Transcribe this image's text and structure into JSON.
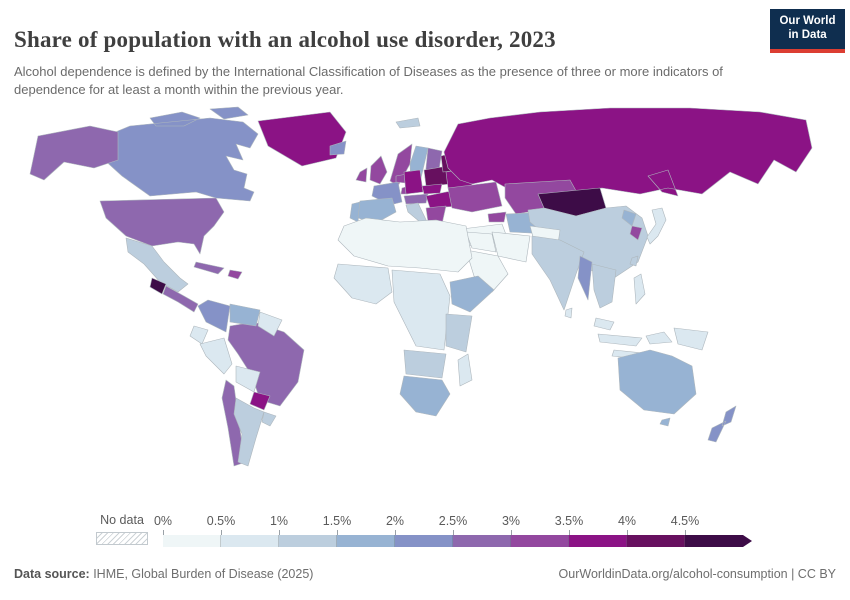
{
  "header": {
    "title": "Share of population with an alcohol use disorder, 2023",
    "subtitle": "Alcohol dependence is defined by the International Classification of Diseases as the presence of three or more indicators of dependence for at least a month within the previous year.",
    "logo": {
      "line1": "Our World",
      "line2": "in Data",
      "bg": "#0f2e4f",
      "accent": "#dc3e32"
    }
  },
  "footer": {
    "source_label": "Data source:",
    "source_text": " IHME, Global Burden of Disease (2025)",
    "link_text": "OurWorldinData.org/alcohol-consumption | CC BY"
  },
  "chart_data": {
    "type": "choropleth_map",
    "title": "Share of population with an alcohol use disorder, 2023",
    "year": 2023,
    "unit": "% of population",
    "legend_position": "bottom",
    "no_data": {
      "label": "No data"
    },
    "legend_bins": [
      {
        "tick": "0%",
        "range": "0-0.5%",
        "color": "#eff6f7"
      },
      {
        "tick": "0.5%",
        "range": "0.5-1%",
        "color": "#dbe8f0"
      },
      {
        "tick": "1%",
        "range": "1-1.5%",
        "color": "#bccede"
      },
      {
        "tick": "1.5%",
        "range": "1.5-2%",
        "color": "#97b3d3"
      },
      {
        "tick": "2%",
        "range": "2-2.5%",
        "color": "#8592c7"
      },
      {
        "tick": "2.5%",
        "range": "2.5-3%",
        "color": "#8e68ae"
      },
      {
        "tick": "3%",
        "range": "3-3.5%",
        "color": "#93489f"
      },
      {
        "tick": "3.5%",
        "range": "3.5-4%",
        "color": "#8b1385"
      },
      {
        "tick": "4%",
        "range": "4-4.5%",
        "color": "#67105f"
      },
      {
        "tick": "4.5%",
        "range": "4.5%+",
        "color": "#3d0c47"
      }
    ],
    "regions": [
      {
        "id": "canada",
        "bin": 4
      },
      {
        "id": "alaska",
        "bin": 5
      },
      {
        "id": "united-states",
        "bin": 5
      },
      {
        "id": "greenland",
        "bin": 7
      },
      {
        "id": "mexico",
        "bin": 2
      },
      {
        "id": "guatemala",
        "bin": 9
      },
      {
        "id": "central-america",
        "bin": 5
      },
      {
        "id": "cuba",
        "bin": 5
      },
      {
        "id": "hispaniola",
        "bin": 6
      },
      {
        "id": "colombia",
        "bin": 4
      },
      {
        "id": "venezuela",
        "bin": 3
      },
      {
        "id": "guianas",
        "bin": 1
      },
      {
        "id": "ecuador",
        "bin": 1
      },
      {
        "id": "peru",
        "bin": 1
      },
      {
        "id": "brazil",
        "bin": 5
      },
      {
        "id": "bolivia",
        "bin": 1
      },
      {
        "id": "paraguay",
        "bin": 7
      },
      {
        "id": "chile",
        "bin": 5
      },
      {
        "id": "argentina",
        "bin": 2
      },
      {
        "id": "uruguay",
        "bin": 2
      },
      {
        "id": "iceland",
        "bin": 4
      },
      {
        "id": "svalbard",
        "bin": 2
      },
      {
        "id": "norway",
        "bin": 6
      },
      {
        "id": "sweden",
        "bin": 3
      },
      {
        "id": "finland",
        "bin": 5
      },
      {
        "id": "denmark",
        "bin": 6
      },
      {
        "id": "united-kingdom",
        "bin": 6
      },
      {
        "id": "ireland",
        "bin": 6
      },
      {
        "id": "portugal",
        "bin": 3
      },
      {
        "id": "spain",
        "bin": 3
      },
      {
        "id": "france",
        "bin": 4
      },
      {
        "id": "benelux",
        "bin": 6
      },
      {
        "id": "germany",
        "bin": 7
      },
      {
        "id": "alpine-states",
        "bin": 5
      },
      {
        "id": "italy",
        "bin": 2
      },
      {
        "id": "czech-slovakia",
        "bin": 7
      },
      {
        "id": "poland",
        "bin": 8
      },
      {
        "id": "hungary-romania",
        "bin": 7
      },
      {
        "id": "balkans",
        "bin": 6
      },
      {
        "id": "greece",
        "bin": 2
      },
      {
        "id": "baltic-states",
        "bin": 8
      },
      {
        "id": "belarus",
        "bin": 7
      },
      {
        "id": "ukraine",
        "bin": 6
      },
      {
        "id": "turkey",
        "bin": 0
      },
      {
        "id": "caucasus",
        "bin": 6
      },
      {
        "id": "russia",
        "bin": 7
      },
      {
        "id": "kazakhstan",
        "bin": 6
      },
      {
        "id": "central-asia",
        "bin": 3
      },
      {
        "id": "kyrgyzstan-tajikistan",
        "bin": 5
      },
      {
        "id": "mongolia",
        "bin": 9
      },
      {
        "id": "china",
        "bin": 2
      },
      {
        "id": "north-korea",
        "bin": 3
      },
      {
        "id": "south-korea",
        "bin": 6
      },
      {
        "id": "japan",
        "bin": 1
      },
      {
        "id": "taiwan",
        "bin": 2
      },
      {
        "id": "afghanistan-pakistan",
        "bin": 0
      },
      {
        "id": "iran",
        "bin": 0
      },
      {
        "id": "iraq-syria",
        "bin": 0
      },
      {
        "id": "arabian-peninsula",
        "bin": 0
      },
      {
        "id": "india",
        "bin": 2
      },
      {
        "id": "sri-lanka",
        "bin": 1
      },
      {
        "id": "myanmar",
        "bin": 4
      },
      {
        "id": "indochina",
        "bin": 2
      },
      {
        "id": "malaysia",
        "bin": 1
      },
      {
        "id": "philippines",
        "bin": 1
      },
      {
        "id": "indonesia",
        "bin": 1
      },
      {
        "id": "papua-new-guinea",
        "bin": 1
      },
      {
        "id": "north-africa",
        "bin": 0
      },
      {
        "id": "west-africa",
        "bin": 1
      },
      {
        "id": "central-africa",
        "bin": 1
      },
      {
        "id": "ethiopia-horn",
        "bin": 3
      },
      {
        "id": "east-africa",
        "bin": 2
      },
      {
        "id": "angola-zambia",
        "bin": 2
      },
      {
        "id": "southern-africa",
        "bin": 3
      },
      {
        "id": "madagascar",
        "bin": 1
      },
      {
        "id": "australia",
        "bin": 3
      },
      {
        "id": "new-zealand",
        "bin": 4
      }
    ]
  }
}
